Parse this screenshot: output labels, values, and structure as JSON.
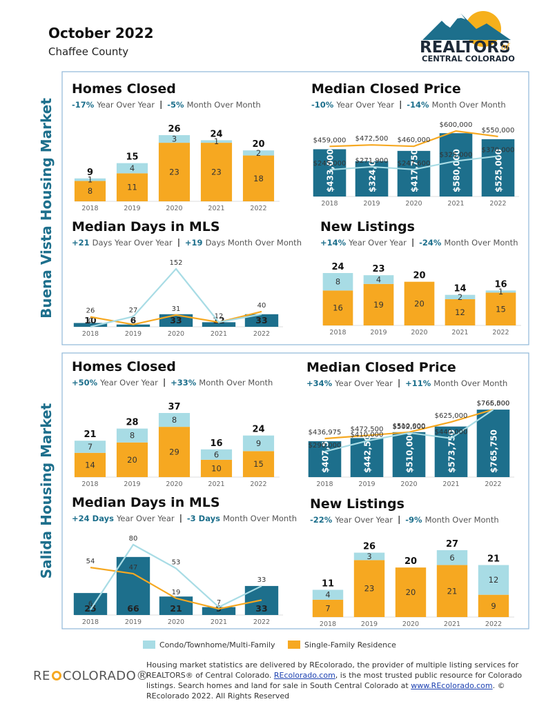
{
  "header": {
    "title": "October 2022",
    "subtitle": "Chaffee County",
    "logo_main": "REALTORS",
    "logo_of": "of",
    "logo_sub": "CENTRAL COLORADO"
  },
  "markets": [
    "Buena Vista Housing Market",
    "Salida Housing Market"
  ],
  "chart_data": [
    {
      "type": "stacked_bar",
      "title": "Homes Closed",
      "yoy": "-17%",
      "yoy_label": "Year Over Year",
      "mom": "-5%",
      "mom_label": "Month Over Month",
      "categories": [
        "2018",
        "2019",
        "2020",
        "2021",
        "2022"
      ],
      "series": [
        {
          "color": "#f6a821",
          "values": [
            8,
            11,
            23,
            23,
            18
          ]
        },
        {
          "color": "#a8dce5",
          "values": [
            1,
            4,
            3,
            1,
            2
          ]
        }
      ],
      "totals": [
        9,
        15,
        26,
        24,
        20
      ]
    },
    {
      "type": "bar_line",
      "title": "Median Closed Price",
      "yoy": "-10%",
      "yoy_label": "Year Over Year",
      "mom": "-14%",
      "mom_label": "Month Over Month",
      "categories": [
        "2018",
        "2019",
        "2020",
        "2021",
        "2022"
      ],
      "series": [
        {
          "mark": "bar",
          "color": "#1d6f8c",
          "values": [
            433000,
            324000,
            417750,
            580000,
            525000
          ],
          "value_labels": [
            "$433,000",
            "$324,000",
            "$417,750",
            "$580,000",
            "$525,000"
          ]
        },
        {
          "mark": "line",
          "color": "#f6a821",
          "values": [
            459000,
            472500,
            460000,
            600000,
            550000
          ],
          "value_labels": [
            "$459,000",
            "$472,500",
            "$460,000",
            "$600,000",
            "$550,000"
          ]
        },
        {
          "mark": "line",
          "color": "#a8dce5",
          "values": [
            245000,
            271900,
            247600,
            325000,
            370000
          ],
          "value_labels": [
            "$245,000",
            "$271,900",
            "$247,600",
            "$325,000",
            "$370,000"
          ]
        }
      ]
    },
    {
      "type": "bar_line",
      "title": "Median Days in MLS",
      "yoy": "+21",
      "yoy_label": "Days Year Over Year",
      "mom": "+19",
      "mom_label": "Days Month Over Month",
      "categories": [
        "2018",
        "2019",
        "2020",
        "2021",
        "2022"
      ],
      "series": [
        {
          "mark": "bar",
          "color": "#1d6f8c",
          "values": [
            10,
            6,
            33,
            12,
            33
          ]
        },
        {
          "mark": "line",
          "color": "#f6a821",
          "values": [
            26,
            6,
            31,
            12,
            40
          ],
          "value_labels": [
            "26",
            "6",
            "31",
            "12",
            "40"
          ]
        },
        {
          "mark": "line",
          "color": "#a8dce5",
          "values": [
            0,
            27,
            152,
            12,
            33
          ],
          "value_labels": [
            "0",
            "27",
            "152",
            null,
            null
          ]
        }
      ]
    },
    {
      "type": "stacked_bar",
      "title": "New Listings",
      "yoy": "+14%",
      "yoy_label": "Year Over Year",
      "mom": "-24%",
      "mom_label": "Month Over Month",
      "categories": [
        "2018",
        "2019",
        "2020",
        "2021",
        "2022"
      ],
      "series": [
        {
          "color": "#f6a821",
          "values": [
            16,
            19,
            20,
            12,
            15
          ]
        },
        {
          "color": "#a8dce5",
          "values": [
            8,
            4,
            null,
            2,
            1
          ]
        }
      ],
      "totals": [
        24,
        23,
        20,
        14,
        16
      ]
    },
    {
      "type": "stacked_bar",
      "title": "Homes Closed",
      "yoy": "+50%",
      "yoy_label": "Year Over Year",
      "mom": "+33%",
      "mom_label": "Month Over Month",
      "categories": [
        "2018",
        "2019",
        "2020",
        "2021",
        "2022"
      ],
      "series": [
        {
          "color": "#f6a821",
          "values": [
            14,
            20,
            29,
            10,
            15
          ]
        },
        {
          "color": "#a8dce5",
          "values": [
            7,
            8,
            8,
            6,
            9
          ]
        }
      ],
      "totals": [
        21,
        28,
        37,
        16,
        24
      ]
    },
    {
      "type": "bar_line",
      "title": "Median Closed Price",
      "yoy": "+34%",
      "yoy_label": "Year Over Year",
      "mom": "+11%",
      "mom_label": "Month Over Month",
      "categories": [
        "2018",
        "2019",
        "2020",
        "2021",
        "2022"
      ],
      "series": [
        {
          "mark": "bar",
          "color": "#1d6f8c",
          "values": [
            407500,
            442500,
            510000,
            573750,
            765750
          ],
          "value_labels": [
            "$407,500",
            "$442,500",
            "$510,000",
            "$573,750",
            "$765,750"
          ]
        },
        {
          "mark": "line",
          "color": "#f6a821",
          "values": [
            436975,
            472500,
            510000,
            625000,
            766500
          ],
          "value_labels": [
            "$436,975",
            "$472,500",
            "$510,000",
            "$625,000",
            "$766,500"
          ]
        },
        {
          "mark": "line",
          "color": "#a8dce5",
          "values": [
            290000,
            410000,
            502500,
            440000,
            765000
          ],
          "value_labels": [
            "$290,000",
            "$410,000",
            "$502,500",
            "$440,000",
            "$765,000"
          ]
        }
      ]
    },
    {
      "type": "bar_line",
      "title": "Median Days in MLS",
      "yoy": "+24 Days",
      "yoy_label": "Year Over Year",
      "mom": "-3 Days",
      "mom_label": "Month Over Month",
      "categories": [
        "2018",
        "2019",
        "2020",
        "2021",
        "2022"
      ],
      "series": [
        {
          "mark": "bar",
          "color": "#1d6f8c",
          "values": [
            25,
            66,
            21,
            9,
            33
          ]
        },
        {
          "mark": "line",
          "color": "#f6a821",
          "values": [
            54,
            47,
            19,
            7,
            17
          ],
          "value_labels": [
            "54",
            "47",
            "19",
            "7",
            null
          ]
        },
        {
          "mark": "line",
          "color": "#a8dce5",
          "values": [
            6,
            80,
            53,
            9,
            33
          ],
          "value_labels": [
            "6",
            "80",
            "53",
            null,
            "33"
          ]
        }
      ]
    },
    {
      "type": "stacked_bar",
      "title": "New Listings",
      "yoy": "-22%",
      "yoy_label": "Year Over Year",
      "mom": "-9%",
      "mom_label": "Month Over Month",
      "categories": [
        "2018",
        "2019",
        "2020",
        "2021",
        "2022"
      ],
      "series": [
        {
          "color": "#f6a821",
          "values": [
            7,
            23,
            20,
            21,
            9
          ]
        },
        {
          "color": "#a8dce5",
          "values": [
            4,
            3,
            null,
            6,
            12
          ]
        }
      ],
      "totals": [
        11,
        26,
        20,
        27,
        21
      ]
    }
  ],
  "legend": [
    {
      "name": "Condo/Townhome/Multi-Family",
      "color": "#a8dce5"
    },
    {
      "name": "Single-Family Residence",
      "color": "#f6a821"
    }
  ],
  "footer": {
    "logo_left": "RE",
    "logo_right": "COLORADO®",
    "text": [
      "Housing market statistics are delivered by REcolorado, the provider of multiple listing services for REALTORS® of Central Colorado. ",
      "REcolorado.com",
      ", is the most trusted public resource for Colorado listings. Search homes and land for sale in South Central Colorado at ",
      "www.REcolorado.com",
      ". © REcolorado 2022. All Rights Reserved"
    ]
  }
}
